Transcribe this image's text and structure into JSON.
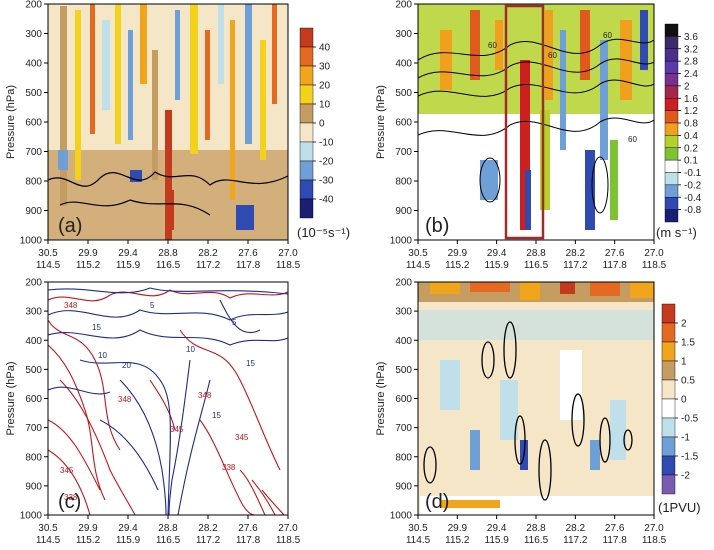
{
  "figure": {
    "ylabel": "Pressure (hPa)",
    "y_ticks": [
      200,
      300,
      400,
      500,
      600,
      700,
      800,
      900,
      1000
    ],
    "x_ticks": [
      {
        "lat": "30.5",
        "lon": "114.5"
      },
      {
        "lat": "29.9",
        "lon": "115.2"
      },
      {
        "lat": "29.4",
        "lon": "115.9"
      },
      {
        "lat": "28.8",
        "lon": "116.5"
      },
      {
        "lat": "28.2",
        "lon": "117.2"
      },
      {
        "lat": "27.6",
        "lon": "117.8"
      },
      {
        "lat": "27.0",
        "lon": "118.5"
      }
    ]
  },
  "chart_data": [
    {
      "type": "heatmap",
      "panel": "(a)",
      "unit": "(10⁻⁵s⁻¹)",
      "ylim": [
        1000,
        200
      ],
      "colorbar": {
        "ticks": [
          "40",
          "30",
          "20",
          "10",
          "0",
          "-10",
          "-20",
          "-30",
          "-40"
        ],
        "colors": [
          "#c43a1f",
          "#e46a22",
          "#f0a51c",
          "#f4d11b",
          "#c59c62",
          "#f5e6c8",
          "#bfe0ea",
          "#6e9fd6",
          "#2f4ab0",
          "#1a1f73"
        ]
      },
      "contour_color": "#000000"
    },
    {
      "type": "heatmap",
      "panel": "(b)",
      "unit": "(m s⁻¹)",
      "ylim": [
        1000,
        200
      ],
      "colorbar": {
        "ticks": [
          "3.6",
          "3.2",
          "2.8",
          "2.4",
          "2",
          "1.6",
          "1.2",
          "0.8",
          "0.4",
          "0.2",
          "0.1",
          "-0.1",
          "-0.2",
          "-0.4",
          "-0.8"
        ],
        "colors": [
          "#111111",
          "#3a2b6b",
          "#4a2f8c",
          "#5a3aa8",
          "#7b2f8f",
          "#a2274f",
          "#cc1f1f",
          "#e05a1f",
          "#f0a01c",
          "#b5d12b",
          "#7cc232",
          "#ffffff",
          "#bfe0ea",
          "#6e9fd6",
          "#2f4ab0",
          "#1a1f73"
        ]
      },
      "contour_labels": [
        "60",
        "60",
        "60",
        "60"
      ],
      "highlight_box_color": "#a32a2a"
    },
    {
      "type": "line",
      "panel": "(c)",
      "ylim": [
        1000,
        200
      ],
      "series": [
        {
          "labels": [
            "348",
            "348",
            "348",
            "345",
            "345",
            "345",
            "338",
            "338"
          ],
          "color": "#c4161c"
        },
        {
          "labels": [
            "5",
            "10",
            "10",
            "15",
            "15",
            "20",
            "5",
            "15"
          ],
          "color": "#1f2d8c"
        }
      ]
    },
    {
      "type": "heatmap",
      "panel": "(d)",
      "unit": "(1PVU)",
      "ylim": [
        1000,
        200
      ],
      "colorbar": {
        "ticks": [
          "2",
          "1.5",
          "1",
          "0.5",
          "0",
          "-0.5",
          "-1",
          "-1.5",
          "-2"
        ],
        "colors": [
          "#c43a1f",
          "#e46a22",
          "#f0a51c",
          "#c59c62",
          "#f5e6c8",
          "#ffffff",
          "#bfe0ea",
          "#6e9fd6",
          "#2f4ab0",
          "#7b5bb0"
        ]
      },
      "contour_color": "#000000"
    }
  ]
}
